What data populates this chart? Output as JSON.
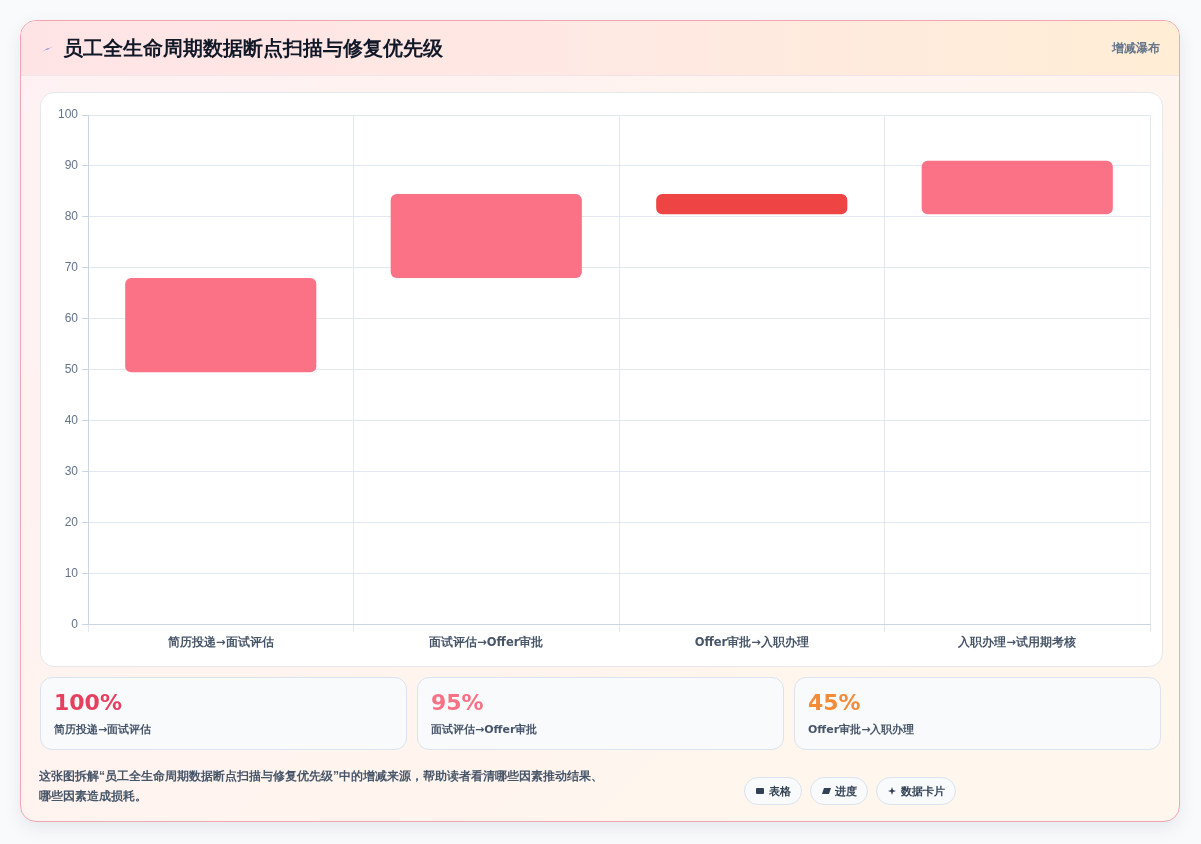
{
  "chart_data": [
    {
      "type": "bar",
      "title": "员工全生命周期数据断点扫描与修复优先级",
      "categories": [
        "简历投递→面试评估",
        "面试评估→Offer审批",
        "Offer审批→入职办理",
        "入职办理→试用期考核"
      ],
      "values": [
        18.5,
        16.5,
        -4,
        10.5
      ],
      "base": [
        49.5,
        68,
        84.5,
        80.5
      ],
      "colors": [
        "#fb7185",
        "#fb7185",
        "#ef4444",
        "#fb7185"
      ],
      "ylim": [
        0,
        100
      ],
      "yticks": [
        0,
        10,
        20,
        30,
        40,
        50,
        60,
        70,
        80,
        90,
        100
      ],
      "grid": true,
      "annotations": [
        "增减瀑布",
        "这张图拆解“员工全生命周期数据断点扫描与修复优先级”中的增减来源，帮助读者看清哪些因素推动结果、哪些因素造成损耗。",
        "表格",
        "进度",
        "数据卡片"
      ]
    },
    {
      "type": "other",
      "categories": [
        "简历投递→面试评估",
        "面试评估→Offer审批",
        "Offer审批→入职办理"
      ],
      "value_labels": [
        "100%",
        "95%",
        "45%"
      ]
    }
  ]
}
